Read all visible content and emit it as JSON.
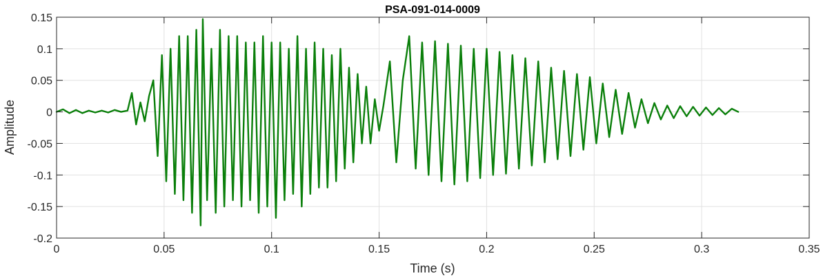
{
  "chart_data": {
    "type": "line",
    "title": "PSA-091-014-0009",
    "xlabel": "Time (s)",
    "ylabel": "Amplitude",
    "xlim": [
      0,
      0.35
    ],
    "ylim": [
      -0.2,
      0.15
    ],
    "xticks": [
      0,
      0.05,
      0.1,
      0.15,
      0.2,
      0.25,
      0.3,
      0.35
    ],
    "xtick_labels": [
      "0",
      "0.05",
      "0.1",
      "0.15",
      "0.2",
      "0.25",
      "0.3",
      "0.35"
    ],
    "yticks": [
      0.15,
      0.1,
      0.05,
      0,
      -0.05,
      -0.1,
      -0.15,
      -0.2
    ],
    "ytick_labels": [
      "0.15",
      "0.1",
      "0.05",
      "0",
      "-0.05",
      "-0.1",
      "-0.15",
      "-0.2"
    ],
    "grid": true,
    "line_color": "#0a7f0a",
    "series": [
      {
        "x": [
          0,
          0.003,
          0.006,
          0.009,
          0.012,
          0.015,
          0.018,
          0.021,
          0.024,
          0.027,
          0.03,
          0.033,
          0.035,
          0.037,
          0.039,
          0.041,
          0.043,
          0.045,
          0.047,
          0.049,
          0.051,
          0.053,
          0.055,
          0.057,
          0.059,
          0.061,
          0.063,
          0.065,
          0.067,
          0.068,
          0.07,
          0.072,
          0.074,
          0.076,
          0.078,
          0.08,
          0.082,
          0.084,
          0.086,
          0.088,
          0.09,
          0.092,
          0.094,
          0.096,
          0.098,
          0.1,
          0.102,
          0.104,
          0.106,
          0.108,
          0.11,
          0.112,
          0.114,
          0.116,
          0.118,
          0.12,
          0.122,
          0.124,
          0.126,
          0.128,
          0.13,
          0.132,
          0.134,
          0.136,
          0.138,
          0.14,
          0.142,
          0.144,
          0.146,
          0.148,
          0.15,
          0.152,
          0.155,
          0.158,
          0.161,
          0.164,
          0.167,
          0.17,
          0.173,
          0.176,
          0.179,
          0.182,
          0.185,
          0.188,
          0.191,
          0.194,
          0.197,
          0.2,
          0.203,
          0.206,
          0.209,
          0.212,
          0.215,
          0.218,
          0.221,
          0.224,
          0.227,
          0.23,
          0.233,
          0.236,
          0.239,
          0.242,
          0.245,
          0.248,
          0.251,
          0.254,
          0.257,
          0.26,
          0.263,
          0.266,
          0.269,
          0.272,
          0.275,
          0.278,
          0.281,
          0.284,
          0.287,
          0.29,
          0.293,
          0.296,
          0.299,
          0.302,
          0.305,
          0.308,
          0.311,
          0.314,
          0.317
        ],
        "y": [
          0,
          0.004,
          -0.002,
          0.003,
          -0.002,
          0.002,
          -0.001,
          0.002,
          -0.001,
          0.003,
          0,
          0.002,
          0.03,
          -0.02,
          0.015,
          -0.015,
          0.025,
          0.05,
          -0.07,
          0.09,
          -0.11,
          0.1,
          -0.13,
          0.12,
          -0.14,
          0.12,
          -0.16,
          0.13,
          -0.18,
          0.147,
          -0.14,
          0.1,
          -0.16,
          0.13,
          -0.15,
          0.12,
          -0.14,
          0.12,
          -0.15,
          0.11,
          -0.14,
          0.11,
          -0.16,
          0.12,
          -0.15,
          0.11,
          -0.168,
          0.11,
          -0.14,
          0.1,
          -0.13,
          0.12,
          -0.15,
          0.1,
          -0.13,
          0.11,
          -0.12,
          0.1,
          -0.12,
          0.09,
          -0.11,
          0.1,
          -0.09,
          0.07,
          -0.08,
          0.06,
          -0.05,
          0.04,
          -0.05,
          0.02,
          -0.03,
          0.01,
          0.08,
          -0.08,
          0.05,
          0.12,
          -0.09,
          0.11,
          -0.1,
          0.112,
          -0.11,
          0.108,
          -0.115,
          0.105,
          -0.11,
          0.1,
          -0.105,
          0.1,
          -0.1,
          0.095,
          -0.098,
          0.09,
          -0.09,
          0.085,
          -0.085,
          0.08,
          -0.08,
          0.07,
          -0.075,
          0.065,
          -0.07,
          0.06,
          -0.06,
          0.055,
          -0.05,
          0.045,
          -0.04,
          0.035,
          -0.035,
          0.03,
          -0.025,
          0.02,
          -0.018,
          0.014,
          -0.012,
          0.01,
          -0.01,
          0.009,
          -0.007,
          0.008,
          -0.006,
          0.007,
          -0.005,
          0.006,
          -0.004,
          0.005,
          0
        ]
      }
    ]
  }
}
